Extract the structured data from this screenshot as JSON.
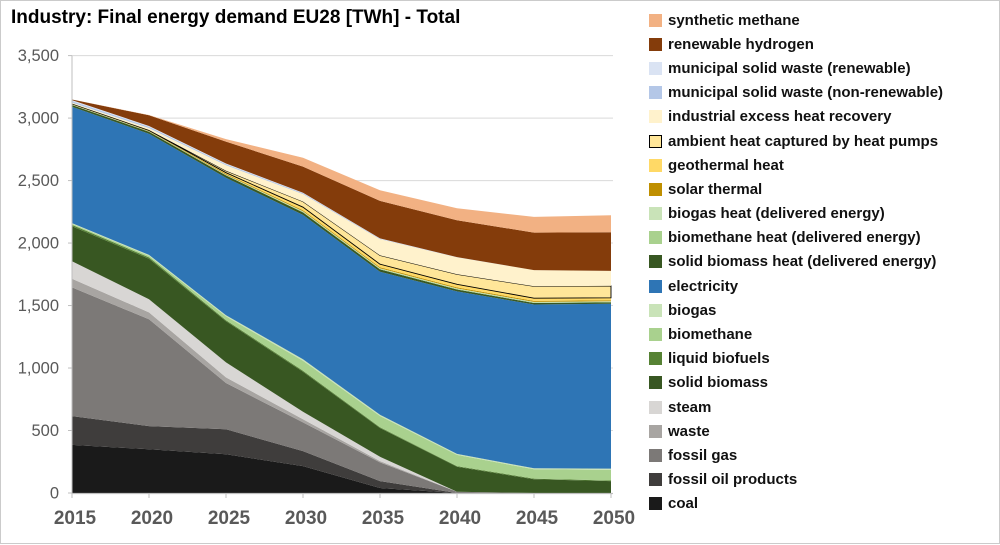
{
  "title": "Industry: Final energy demand EU28 [TWh] - Total",
  "chart_data": {
    "type": "area",
    "stacked": true,
    "title": "Industry: Final energy demand EU28 [TWh] - Total",
    "unit": "TWh",
    "xlabel": "",
    "ylabel": "",
    "x": [
      2015,
      2020,
      2025,
      2030,
      2035,
      2040,
      2045,
      2050
    ],
    "x_tick_labels": [
      "2015",
      "2020",
      "2025",
      "2030",
      "2035",
      "2040",
      "2045",
      "2050"
    ],
    "ylim": [
      0,
      3500
    ],
    "y_tick_interval": 500,
    "y_tick_labels": [
      "0",
      "500",
      "1,000",
      "1,500",
      "2,000",
      "2,500",
      "3,000",
      "3,500"
    ],
    "grid": "horizontal",
    "gridline_color": "#d9d9d9",
    "axis_color": "#bfbfbf",
    "tick_label_color": "#595959",
    "legend_position": "right",
    "totals_by_year": [
      3149,
      3025,
      2832,
      2682,
      2422,
      2278,
      2209,
      2222
    ],
    "series": [
      {
        "name": "coal",
        "color": "#1A1A1A",
        "values": [
          385,
          350,
          310,
          215,
          40,
          0,
          0,
          0
        ]
      },
      {
        "name": "fossil oil products",
        "color": "#3F3D3C",
        "values": [
          230,
          185,
          200,
          120,
          55,
          0,
          0,
          0
        ]
      },
      {
        "name": "fossil gas",
        "color": "#7C7977",
        "values": [
          1030,
          855,
          370,
          230,
          150,
          10,
          0,
          0
        ]
      },
      {
        "name": "waste",
        "color": "#A8A5A2",
        "values": [
          70,
          55,
          45,
          25,
          10,
          0,
          0,
          0
        ]
      },
      {
        "name": "steam",
        "color": "#D8D6D4",
        "values": [
          140,
          105,
          120,
          60,
          35,
          0,
          0,
          0
        ]
      },
      {
        "name": "solid biomass",
        "color": "#385722",
        "values": [
          280,
          325,
          330,
          320,
          230,
          200,
          110,
          95
        ]
      },
      {
        "name": "liquid biofuels",
        "color": "#568234",
        "values": [
          10,
          10,
          8,
          8,
          6,
          5,
          5,
          5
        ]
      },
      {
        "name": "biomethane",
        "color": "#A9D18E",
        "values": [
          8,
          12,
          30,
          80,
          90,
          90,
          75,
          85
        ]
      },
      {
        "name": "biogas",
        "color": "#C9E3B8",
        "values": [
          7,
          8,
          10,
          12,
          10,
          8,
          8,
          10
        ]
      },
      {
        "name": "electricity",
        "color": "#2E75B5",
        "values": [
          930,
          970,
          1100,
          1155,
          1145,
          1300,
          1310,
          1320
        ]
      },
      {
        "name": "solid biomass heat (delivered energy)",
        "color": "#385722",
        "values": [
          15,
          16,
          18,
          20,
          18,
          15,
          12,
          10
        ]
      },
      {
        "name": "biomethane heat (delivered energy)",
        "color": "#A9D18E",
        "values": [
          2,
          2,
          3,
          5,
          5,
          5,
          5,
          5
        ]
      },
      {
        "name": "biogas heat (delivered energy)",
        "color": "#C9E3B8",
        "values": [
          2,
          2,
          3,
          4,
          4,
          4,
          4,
          4
        ]
      },
      {
        "name": "solar thermal",
        "color": "#BF8F00",
        "values": [
          3,
          4,
          6,
          8,
          8,
          8,
          8,
          8
        ]
      },
      {
        "name": "geothermal heat",
        "color": "#FFD966",
        "values": [
          2,
          3,
          10,
          25,
          25,
          25,
          22,
          20
        ]
      },
      {
        "name": "ambient heat captured by heat pumps",
        "color": "#FFE699",
        "border": "#000000",
        "values": [
          2,
          3,
          15,
          45,
          70,
          80,
          95,
          95
        ]
      },
      {
        "name": "industrial excess heat recovery",
        "color": "#FFF2CC",
        "values": [
          8,
          15,
          45,
          60,
          130,
          135,
          130,
          120
        ]
      },
      {
        "name": "municipal solid waste (non-renewable)",
        "color": "#B4C7E7",
        "values": [
          12,
          10,
          8,
          6,
          4,
          2,
          0,
          0
        ]
      },
      {
        "name": "municipal solid waste (renewable)",
        "color": "#DAE3F3",
        "values": [
          8,
          7,
          6,
          4,
          2,
          1,
          0,
          0
        ]
      },
      {
        "name": "renewable hydrogen",
        "color": "#843C0B",
        "values": [
          5,
          85,
          175,
          210,
          300,
          295,
          300,
          310
        ]
      },
      {
        "name": "synthetic methane",
        "color": "#F2B183",
        "values": [
          0,
          3,
          20,
          70,
          85,
          95,
          125,
          135
        ]
      }
    ]
  }
}
